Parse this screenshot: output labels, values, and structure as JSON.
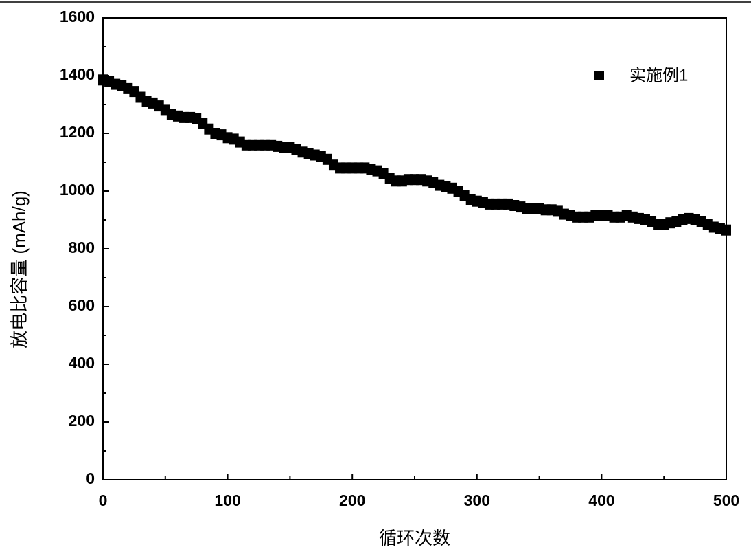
{
  "chart_data": {
    "type": "scatter",
    "xlabel": "循环次数",
    "ylabel": "放电比容量 (mAh/g)",
    "xlim": [
      0,
      500
    ],
    "xticks": [
      0,
      100,
      200,
      300,
      400,
      500
    ],
    "ylim": [
      0,
      1600
    ],
    "yticks": [
      0,
      200,
      400,
      600,
      800,
      1000,
      1200,
      1400,
      1600
    ],
    "legend": "upper right",
    "series": [
      {
        "name": "实施例1",
        "color": "#000000",
        "x": [
          0,
          5,
          10,
          15,
          20,
          25,
          30,
          35,
          40,
          45,
          50,
          55,
          60,
          65,
          70,
          75,
          80,
          85,
          90,
          95,
          100,
          105,
          110,
          115,
          120,
          125,
          130,
          135,
          140,
          145,
          150,
          155,
          160,
          165,
          170,
          175,
          180,
          185,
          190,
          195,
          200,
          205,
          210,
          215,
          220,
          225,
          230,
          235,
          240,
          245,
          250,
          255,
          260,
          265,
          270,
          275,
          280,
          285,
          290,
          295,
          300,
          305,
          310,
          315,
          320,
          325,
          330,
          335,
          340,
          345,
          350,
          355,
          360,
          365,
          370,
          375,
          380,
          385,
          390,
          395,
          400,
          405,
          410,
          415,
          420,
          425,
          430,
          435,
          440,
          445,
          450,
          455,
          460,
          465,
          470,
          475,
          480,
          485,
          490,
          495,
          500
        ],
        "values": [
          1385,
          1380,
          1370,
          1365,
          1355,
          1345,
          1325,
          1310,
          1305,
          1295,
          1280,
          1265,
          1260,
          1255,
          1255,
          1250,
          1235,
          1215,
          1200,
          1195,
          1185,
          1180,
          1170,
          1160,
          1160,
          1160,
          1160,
          1160,
          1155,
          1150,
          1150,
          1145,
          1135,
          1130,
          1125,
          1120,
          1110,
          1090,
          1080,
          1080,
          1080,
          1080,
          1080,
          1075,
          1070,
          1060,
          1045,
          1035,
          1035,
          1040,
          1040,
          1040,
          1035,
          1030,
          1020,
          1015,
          1010,
          1000,
          985,
          970,
          965,
          960,
          955,
          955,
          955,
          955,
          950,
          945,
          940,
          940,
          940,
          935,
          935,
          930,
          920,
          915,
          910,
          910,
          910,
          915,
          915,
          915,
          910,
          910,
          915,
          910,
          905,
          900,
          895,
          885,
          885,
          890,
          895,
          900,
          905,
          900,
          895,
          885,
          875,
          870,
          865
        ]
      }
    ]
  }
}
